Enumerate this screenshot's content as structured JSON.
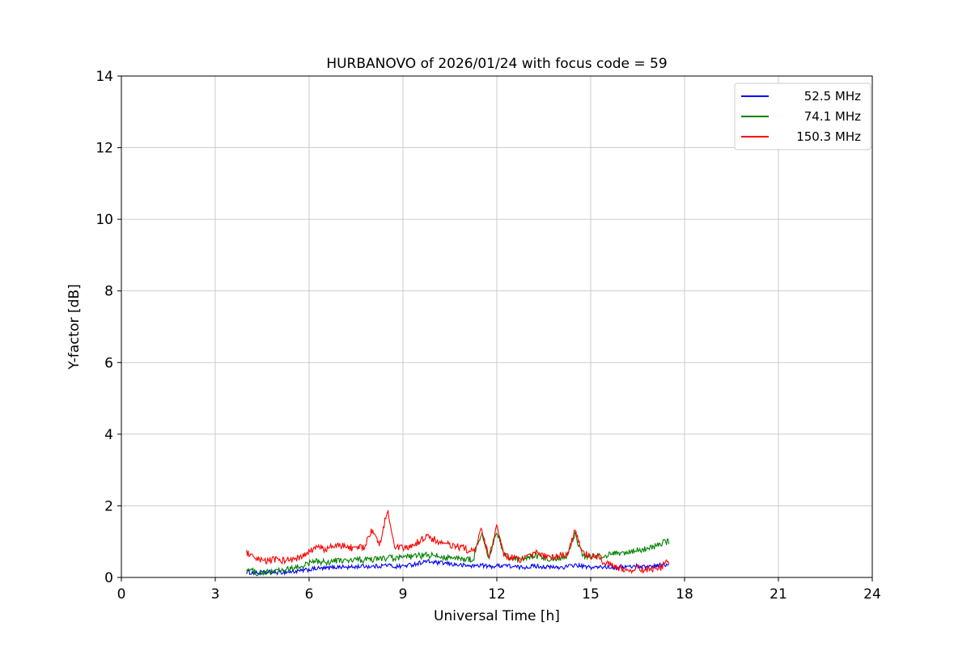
{
  "chart_data": {
    "type": "line",
    "title": "HURBANOVO of 2026/01/24 with focus code = 59",
    "xlabel": "Universal Time [h]",
    "ylabel": "Y-factor [dB]",
    "xlim": [
      0,
      24
    ],
    "ylim": [
      0,
      14
    ],
    "xticks": [
      0,
      3,
      6,
      9,
      12,
      15,
      18,
      21,
      24
    ],
    "yticks": [
      0,
      2,
      4,
      6,
      8,
      10,
      12,
      14
    ],
    "grid": true,
    "legend_position": "upper right",
    "x": [
      4.0,
      4.25,
      4.5,
      4.75,
      5.0,
      5.25,
      5.5,
      5.75,
      6.0,
      6.25,
      6.5,
      6.75,
      7.0,
      7.25,
      7.5,
      7.75,
      8.0,
      8.25,
      8.5,
      8.75,
      9.0,
      9.25,
      9.5,
      9.75,
      10.0,
      10.25,
      10.5,
      10.75,
      11.0,
      11.25,
      11.5,
      11.75,
      12.0,
      12.25,
      12.5,
      12.75,
      13.0,
      13.25,
      13.5,
      13.75,
      14.0,
      14.25,
      14.5,
      14.75,
      15.0,
      15.25,
      15.5,
      15.75,
      16.0,
      16.25,
      16.5,
      16.75,
      17.0,
      17.25,
      17.5
    ],
    "series": [
      {
        "name": "52.5 MHz",
        "color": "#0000ff",
        "noise": 0.06,
        "values": [
          0.15,
          0.12,
          0.13,
          0.15,
          0.14,
          0.15,
          0.16,
          0.18,
          0.22,
          0.25,
          0.25,
          0.28,
          0.3,
          0.28,
          0.3,
          0.32,
          0.3,
          0.32,
          0.35,
          0.3,
          0.32,
          0.35,
          0.4,
          0.45,
          0.42,
          0.4,
          0.38,
          0.35,
          0.33,
          0.32,
          0.35,
          0.3,
          0.32,
          0.35,
          0.3,
          0.28,
          0.3,
          0.32,
          0.3,
          0.28,
          0.28,
          0.3,
          0.35,
          0.3,
          0.28,
          0.28,
          0.3,
          0.28,
          0.3,
          0.3,
          0.32,
          0.3,
          0.32,
          0.35,
          0.33
        ]
      },
      {
        "name": "74.1 MHz",
        "color": "#008000",
        "noise": 0.09,
        "values": [
          0.25,
          0.15,
          0.12,
          0.15,
          0.18,
          0.2,
          0.25,
          0.3,
          0.4,
          0.45,
          0.42,
          0.45,
          0.48,
          0.45,
          0.5,
          0.48,
          0.5,
          0.52,
          0.55,
          0.52,
          0.55,
          0.58,
          0.6,
          0.62,
          0.6,
          0.58,
          0.55,
          0.52,
          0.5,
          0.52,
          1.25,
          0.55,
          1.3,
          0.6,
          0.55,
          0.52,
          0.55,
          0.6,
          0.55,
          0.52,
          0.55,
          0.6,
          1.2,
          0.6,
          0.58,
          0.6,
          0.62,
          0.65,
          0.68,
          0.7,
          0.75,
          0.8,
          0.85,
          0.95,
          1.0
        ]
      },
      {
        "name": "150.3 MHz",
        "color": "#ff0000",
        "noise": 0.1,
        "values": [
          0.7,
          0.5,
          0.45,
          0.48,
          0.5,
          0.48,
          0.5,
          0.55,
          0.7,
          0.85,
          0.8,
          0.85,
          0.9,
          0.85,
          0.8,
          0.85,
          1.3,
          0.9,
          1.9,
          0.85,
          0.8,
          0.85,
          1.0,
          1.15,
          1.05,
          0.95,
          0.9,
          0.85,
          0.8,
          0.7,
          1.3,
          0.55,
          1.4,
          0.6,
          0.55,
          0.5,
          0.55,
          0.7,
          0.6,
          0.55,
          0.6,
          0.65,
          1.3,
          0.7,
          0.6,
          0.55,
          0.4,
          0.3,
          0.25,
          0.22,
          0.25,
          0.22,
          0.25,
          0.3,
          0.45
        ]
      }
    ]
  }
}
